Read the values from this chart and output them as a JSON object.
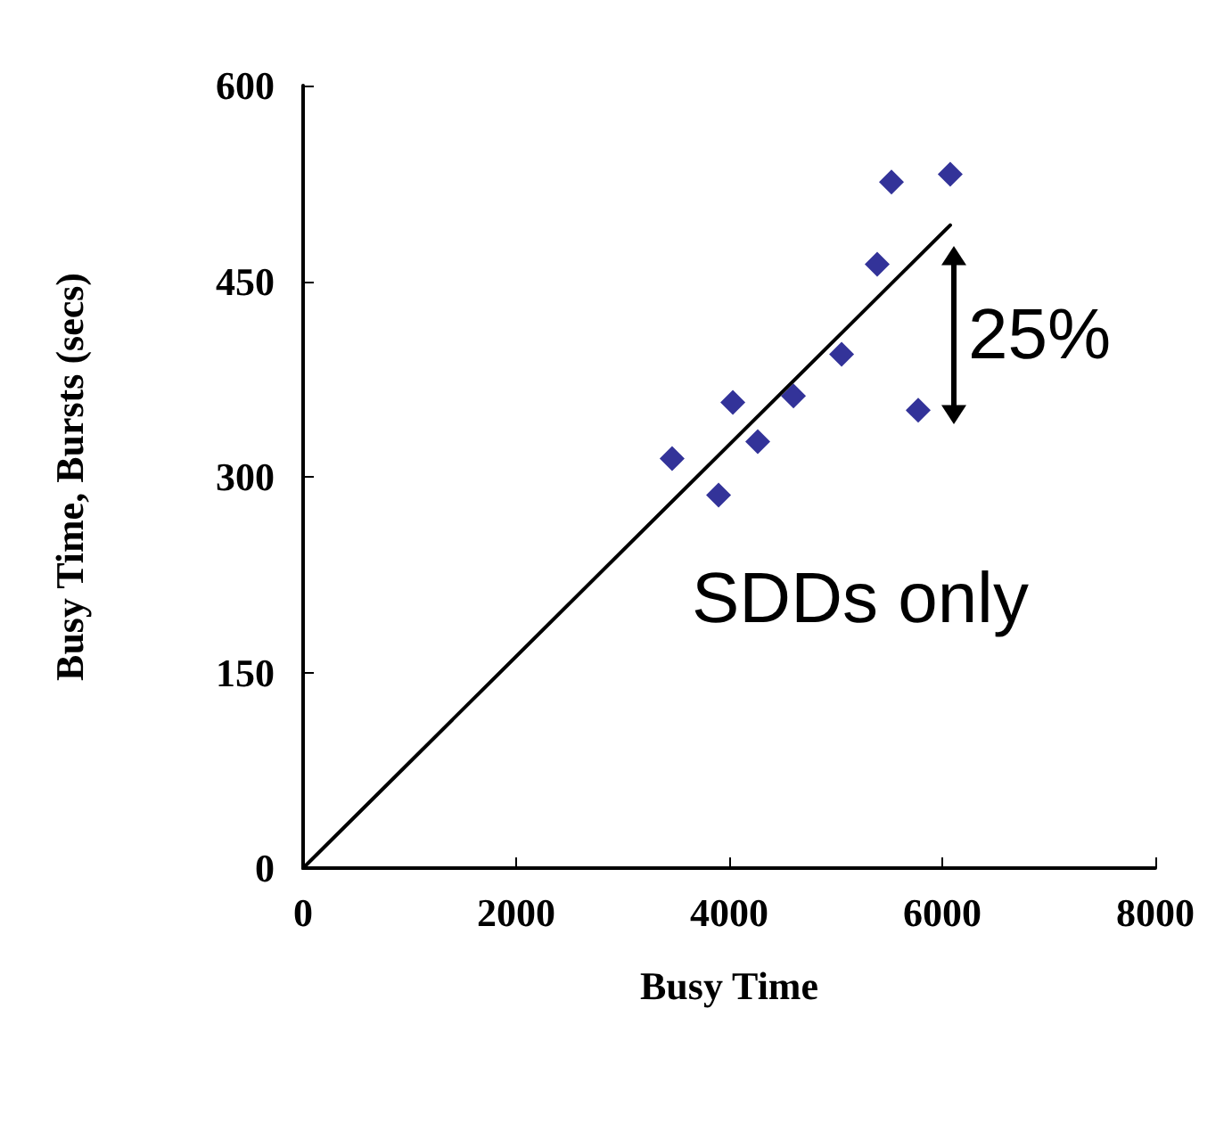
{
  "chart_data": {
    "type": "scatter",
    "xlabel": "Busy Time",
    "ylabel": "Busy Time, Bursts (secs)",
    "x": [
      3464,
      3900,
      4034,
      4268,
      4603,
      5055,
      5389,
      5523,
      5774,
      6075
    ],
    "series": [
      {
        "color": "#000080",
        "marker": "diamond",
        "values": [
          314,
          286,
          357,
          327,
          362,
          394,
          463,
          526,
          351,
          532
        ]
      },
      {
        "type": "line",
        "color": "#000000",
        "marker": "none",
        "line_style": "solid",
        "x": [
          0,
          6075
        ],
        "values": [
          0,
          493
        ]
      }
    ],
    "xlim": [
      0,
      8000
    ],
    "xticks": [
      0,
      2000,
      4000,
      6000,
      8000
    ],
    "ylim": [
      0,
      600
    ],
    "yticks": [
      0,
      150,
      300,
      450,
      600
    ],
    "grid": false,
    "annotations": [
      "25%",
      "SDDs only"
    ]
  }
}
